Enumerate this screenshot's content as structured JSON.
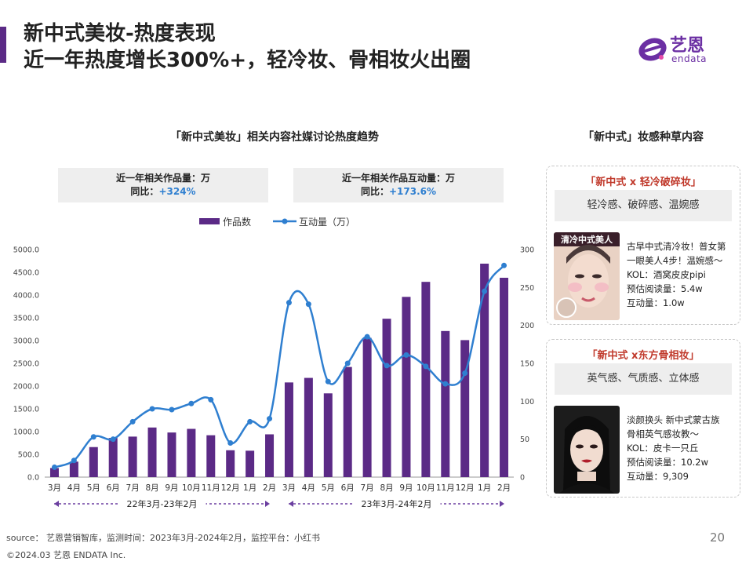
{
  "header": {
    "title_line1": "新中式美妆-热度表现",
    "title_line2": "近一年热度增长300%+，轻冷妆、骨相妆火出圈"
  },
  "logo": {
    "cn": "艺恩",
    "en": "endata"
  },
  "chart_title": "「新中式美妆」相关内容社媒讨论热度趋势",
  "stats": {
    "left": {
      "label": "近一年相关作品量：万",
      "yoy_label": "同比：",
      "yoy_value": "+324%"
    },
    "right": {
      "label": "近一年相关作品互动量：万",
      "yoy_label": "同比：",
      "yoy_value": "+173.6%"
    }
  },
  "colors": {
    "bar": "#5b2a86",
    "line": "#2f7fd0",
    "accent": "#5b2a86",
    "highlight": "#c0392b"
  },
  "chart_data": {
    "type": "bar",
    "categories": [
      "3月",
      "4月",
      "5月",
      "6月",
      "7月",
      "8月",
      "9月",
      "10月",
      "11月",
      "12月",
      "1月",
      "2月",
      "3月",
      "4月",
      "5月",
      "6月",
      "7月",
      "8月",
      "9月",
      "10月",
      "11月",
      "12月",
      "1月",
      "2月"
    ],
    "series": [
      {
        "name": "作品数",
        "type": "bar",
        "axis": "left",
        "values": [
          200,
          340,
          660,
          860,
          890,
          1090,
          980,
          1060,
          920,
          590,
          580,
          940,
          2080,
          2180,
          1840,
          2420,
          3060,
          3480,
          3960,
          4290,
          3210,
          3010,
          4690,
          4380
        ]
      },
      {
        "name": "互动量（万）",
        "type": "line",
        "axis": "right",
        "values": [
          13,
          22,
          53,
          50,
          73,
          90,
          89,
          97,
          102,
          45,
          73,
          77,
          230,
          228,
          126,
          150,
          185,
          147,
          161,
          146,
          123,
          137,
          245,
          279
        ]
      }
    ],
    "y_left": {
      "min": 0,
      "max": 5000,
      "ticks": [
        "0.0",
        "500.0",
        "1000.0",
        "1500.0",
        "2000.0",
        "2500.0",
        "3000.0",
        "3500.0",
        "4000.0",
        "4500.0",
        "5000.0"
      ]
    },
    "y_right": {
      "min": 0,
      "max": 300,
      "ticks": [
        "0",
        "50",
        "100",
        "150",
        "200",
        "250",
        "300"
      ]
    },
    "periods": [
      {
        "label": "22年3月-23年2月",
        "from": 0,
        "to": 11
      },
      {
        "label": "23年3月-24年2月",
        "from": 12,
        "to": 23
      }
    ],
    "legend": "top"
  },
  "panel": {
    "title": "「新中式」妆感种草内容",
    "cards": [
      {
        "title": "「新中式 x 轻冷破碎妆」",
        "tags": "轻冷感、破碎感、温婉感",
        "image_caption": "清冷中式美人",
        "lines": [
          "古早中式清冷妆！普女第",
          "一眼美人4步！温婉感～",
          "KOL：酒窝皮皮pipi",
          "预估阅读量：5.4w",
          "互动量：1.0w"
        ]
      },
      {
        "title": "「新中式 x东方骨相妆」",
        "tags": "英气感、气质感、立体感",
        "lines": [
          "淡颜换头   新中式蒙古族",
          "骨相英气感妆教～",
          "KOL：皮卡一只丘",
          "预估阅读量：10.2w",
          "互动量：9,309"
        ]
      }
    ]
  },
  "footer": {
    "source": "source： 艺恩营销智库，监测时间：2023年3月-2024年2月，监控平台：小红书",
    "copyright": "©2024.03  艺恩 ENDATA Inc.",
    "page_number": "20"
  }
}
